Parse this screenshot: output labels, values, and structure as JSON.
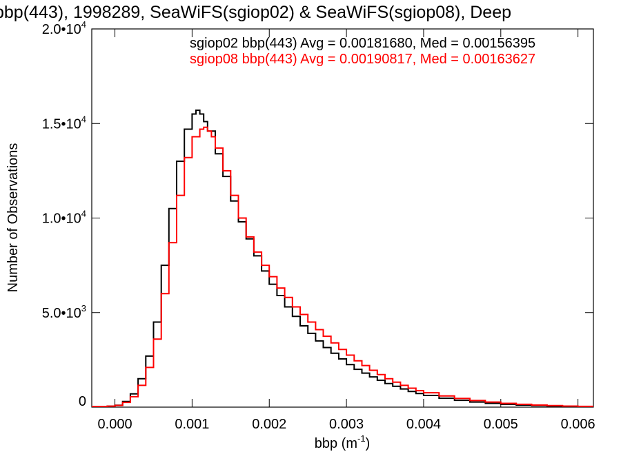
{
  "chart_data": {
    "type": "line",
    "title": "bbp(443), 1998289, SeaWiFS(sgiop02) & SeaWiFS(sgiop08), Deep",
    "xlabel": "bbp (m",
    "xlabel_sup": "-1",
    "xlabel_close": ")",
    "ylabel": "Number of Observations",
    "xlim": [
      -0.0003,
      0.0062
    ],
    "ylim": [
      0,
      20000
    ],
    "xticks": [
      {
        "value": 0.0,
        "label": "0.000"
      },
      {
        "value": 0.001,
        "label": "0.001"
      },
      {
        "value": 0.002,
        "label": "0.002"
      },
      {
        "value": 0.003,
        "label": "0.003"
      },
      {
        "value": 0.004,
        "label": "0.004"
      },
      {
        "value": 0.005,
        "label": "0.005"
      },
      {
        "value": 0.006,
        "label": "0.006"
      }
    ],
    "yticks": [
      {
        "value": 0,
        "label": "0",
        "sup": ""
      },
      {
        "value": 5000,
        "label": "5.0•10",
        "sup": "3"
      },
      {
        "value": 10000,
        "label": "1.0•10",
        "sup": "4"
      },
      {
        "value": 15000,
        "label": "1.5•10",
        "sup": "4"
      },
      {
        "value": 20000,
        "label": "2.0•10",
        "sup": "4"
      }
    ],
    "legend_position": "top-right",
    "series": [
      {
        "name": "sgiop02 bbp(443) Avg = 0.00181680, Med = 0.00156395",
        "color": "#000000",
        "x": [
          -0.0003,
          -0.0001,
          0.0,
          0.0001,
          0.0002,
          0.0003,
          0.0004,
          0.0005,
          0.0006,
          0.0007,
          0.0008,
          0.0009,
          0.001,
          0.00105,
          0.0011,
          0.00115,
          0.0012,
          0.0013,
          0.0014,
          0.0015,
          0.0016,
          0.0017,
          0.0018,
          0.0019,
          0.002,
          0.0021,
          0.0022,
          0.0023,
          0.0024,
          0.0025,
          0.0026,
          0.0027,
          0.0028,
          0.0029,
          0.003,
          0.0031,
          0.0032,
          0.0033,
          0.0034,
          0.0035,
          0.0036,
          0.0037,
          0.0038,
          0.0039,
          0.004,
          0.0042,
          0.0044,
          0.0046,
          0.0048,
          0.005,
          0.0052,
          0.0054,
          0.0056,
          0.0058,
          0.006,
          0.0062
        ],
        "y": [
          30,
          50,
          100,
          300,
          700,
          1500,
          2700,
          4500,
          7500,
          10500,
          13000,
          14700,
          15500,
          15700,
          15500,
          15100,
          14600,
          13400,
          12200,
          10900,
          9800,
          8900,
          8000,
          7200,
          6500,
          5900,
          5300,
          4800,
          4300,
          3900,
          3500,
          3150,
          2850,
          2550,
          2250,
          2000,
          1800,
          1600,
          1420,
          1250,
          1100,
          960,
          830,
          720,
          620,
          470,
          360,
          270,
          200,
          150,
          110,
          80,
          60,
          40,
          30,
          20
        ]
      },
      {
        "name": "sgiop08 bbp(443) Avg = 0.00190817, Med = 0.00163627",
        "color": "#ff0000",
        "x": [
          -0.0003,
          -0.0001,
          0.0,
          0.0001,
          0.0002,
          0.0003,
          0.0004,
          0.0005,
          0.0006,
          0.0007,
          0.0008,
          0.0009,
          0.001,
          0.0011,
          0.00115,
          0.0012,
          0.00125,
          0.0013,
          0.0014,
          0.0015,
          0.0016,
          0.0017,
          0.0018,
          0.0019,
          0.002,
          0.0021,
          0.0022,
          0.0023,
          0.0024,
          0.0025,
          0.0026,
          0.0027,
          0.0028,
          0.0029,
          0.003,
          0.0031,
          0.0032,
          0.0033,
          0.0034,
          0.0035,
          0.0036,
          0.0037,
          0.0038,
          0.0039,
          0.004,
          0.0042,
          0.0044,
          0.0046,
          0.0048,
          0.005,
          0.0052,
          0.0054,
          0.0056,
          0.0058,
          0.006,
          0.0062
        ],
        "y": [
          30,
          50,
          90,
          250,
          550,
          1150,
          2100,
          3600,
          6000,
          8700,
          11200,
          13200,
          14300,
          14700,
          14800,
          14600,
          14300,
          13700,
          12500,
          11200,
          10000,
          9000,
          8200,
          7500,
          6900,
          6300,
          5800,
          5300,
          4900,
          4500,
          4100,
          3750,
          3400,
          3050,
          2750,
          2450,
          2200,
          1950,
          1720,
          1500,
          1320,
          1150,
          1000,
          870,
          760,
          590,
          460,
          350,
          270,
          200,
          150,
          110,
          80,
          55,
          40,
          30
        ]
      }
    ]
  }
}
